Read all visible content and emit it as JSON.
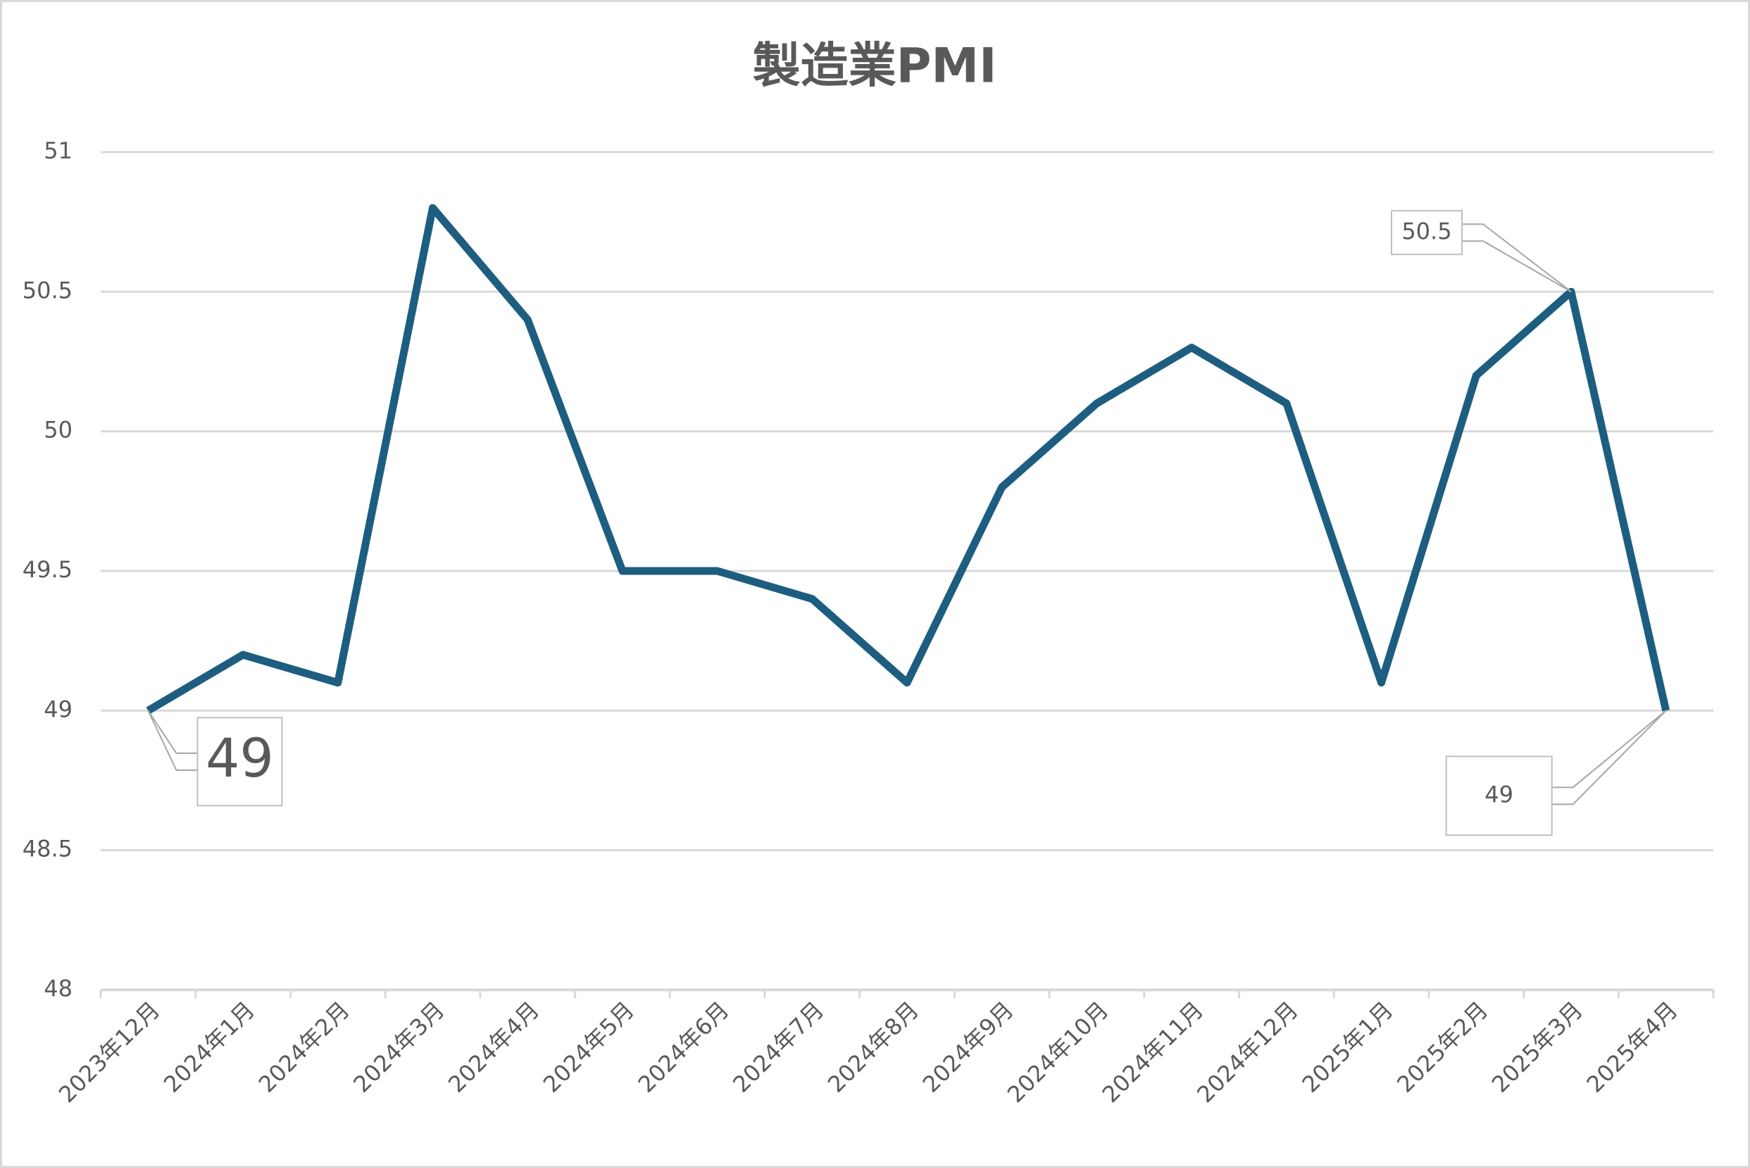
{
  "chart_data": {
    "type": "line",
    "title": "製造業PMI",
    "categories": [
      "2023年12月",
      "2024年1月",
      "2024年2月",
      "2024年3月",
      "2024年4月",
      "2024年5月",
      "2024年6月",
      "2024年7月",
      "2024年8月",
      "2024年9月",
      "2024年10月",
      "2024年11月",
      "2024年12月",
      "2025年1月",
      "2025年2月",
      "2025年3月",
      "2025年4月"
    ],
    "series": [
      {
        "name": "製造業PMI",
        "color": "#1d5e80",
        "values": [
          49,
          49.2,
          49.1,
          50.8,
          50.4,
          49.5,
          49.5,
          49.4,
          49.1,
          49.8,
          50.1,
          50.3,
          50.1,
          49.1,
          50.2,
          50.5,
          49
        ],
        "value_labels": [
          "49",
          null,
          null,
          null,
          null,
          null,
          null,
          null,
          null,
          null,
          null,
          null,
          null,
          null,
          null,
          "50.5",
          "49"
        ]
      }
    ],
    "ylim": [
      48,
      51
    ],
    "yticks": [
      48,
      48.5,
      49,
      49.5,
      50,
      50.5,
      51
    ],
    "grid": true
  }
}
